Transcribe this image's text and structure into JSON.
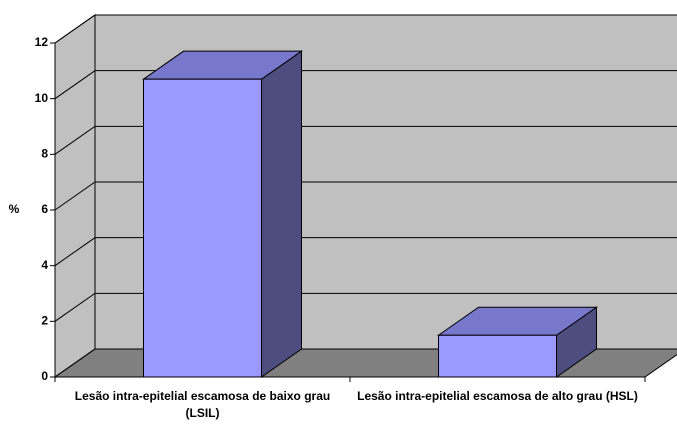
{
  "chart_data": {
    "type": "bar3d",
    "ylabel": "%",
    "categories": [
      "Lesão intra-epitelial escamosa de baixo grau (LSIL)",
      "Lesão intra-epitelial escamosa de alto grau (HSL)"
    ],
    "values": [
      10.7,
      1.5
    ],
    "color": "#9999ff",
    "ylim": [
      0,
      12
    ],
    "yticks": [
      0,
      2,
      4,
      6,
      8,
      10,
      12
    ],
    "grid": true
  }
}
